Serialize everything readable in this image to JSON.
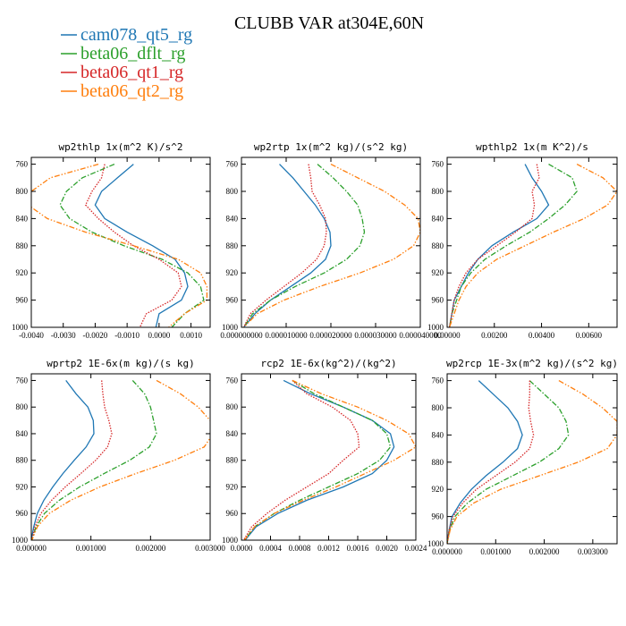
{
  "title": "CLUBB VAR at304E,60N",
  "legend": [
    {
      "name": "cam078_qt5_rg",
      "color": "#1f77b4",
      "dash": "solid"
    },
    {
      "name": "beta06_dflt_rg",
      "color": "#2ca02c",
      "dash": "dashdot"
    },
    {
      "name": "beta06_qt1_rg",
      "color": "#d62728",
      "dash": "dotted"
    },
    {
      "name": "beta06_qt2_rg",
      "color": "#ff7f0e",
      "dash": "dashdotdot"
    }
  ],
  "chart_data": [
    {
      "type": "line",
      "title": "wp2thlp  1x(m^2 K)/s^2",
      "xlim": [
        -0.004,
        0.0016
      ],
      "xticks": [
        -0.004,
        -0.003,
        -0.002,
        -0.001,
        0,
        0.001
      ],
      "xtick_labels": [
        "-0.0040",
        "-0.0030",
        "-0.0020",
        "-0.0010",
        "0.0000",
        "0.0010"
      ],
      "ylim": [
        1000,
        750
      ],
      "yticks": [
        760,
        800,
        840,
        880,
        920,
        960,
        1000
      ],
      "y": [
        760,
        780,
        800,
        820,
        840,
        860,
        880,
        900,
        920,
        940,
        960,
        980,
        1000
      ],
      "series": [
        {
          "name": "cam078_qt5_rg",
          "values": [
            -0.0008,
            -0.0013,
            -0.0018,
            -0.002,
            -0.0017,
            -0.001,
            -0.0002,
            0.0005,
            0.0008,
            0.0009,
            0.0007,
            0.0,
            -0.0001
          ]
        },
        {
          "name": "beta06_dflt_rg",
          "values": [
            -0.0014,
            -0.0024,
            -0.0029,
            -0.0031,
            -0.0028,
            -0.0021,
            -0.0011,
            0.0001,
            0.0009,
            0.0013,
            0.0014,
            0.0008,
            0.0004
          ]
        },
        {
          "name": "beta06_qt1_rg",
          "values": [
            -0.0017,
            -0.0018,
            -0.0021,
            -0.0023,
            -0.0019,
            -0.0014,
            -0.0008,
            0.0,
            0.0006,
            0.0007,
            0.0004,
            -0.0004,
            -0.0006
          ]
        },
        {
          "name": "beta06_qt2_rg",
          "values": [
            -0.0019,
            -0.0034,
            -0.004,
            -0.0041,
            -0.0035,
            -0.0023,
            -0.0008,
            0.0006,
            0.0013,
            0.0015,
            0.0015,
            0.0008,
            0.0003
          ]
        }
      ]
    },
    {
      "type": "line",
      "title": "wp2rtp  1x(m^2 kg)/(s^2 kg)",
      "xlim": [
        0,
        4e-05
      ],
      "xticks": [
        0,
        1e-05,
        2e-05,
        3e-05,
        4e-05
      ],
      "xtick_labels": [
        "0.000000000",
        "0.000010000",
        "0.000020000",
        "0.000030000",
        "0.000040000"
      ],
      "ylim": [
        1000,
        750
      ],
      "yticks": [
        760,
        800,
        840,
        880,
        920,
        960,
        1000
      ],
      "y": [
        760,
        780,
        800,
        820,
        840,
        860,
        880,
        900,
        920,
        940,
        960,
        980,
        1000
      ],
      "series": [
        {
          "name": "cam078_qt5_rg",
          "values": [
            8.5e-06,
            1.15e-05,
            1.4e-05,
            1.65e-05,
            1.85e-05,
            1.98e-05,
            2e-05,
            1.88e-05,
            1.55e-05,
            1.1e-05,
            6.5e-06,
            3e-06,
            5e-07
          ]
        },
        {
          "name": "beta06_dflt_rg",
          "values": [
            1.7e-05,
            2.05e-05,
            2.35e-05,
            2.6e-05,
            2.7e-05,
            2.75e-05,
            2.65e-05,
            2.35e-05,
            1.85e-05,
            1.2e-05,
            6.5e-06,
            2.5e-06,
            5e-07
          ]
        },
        {
          "name": "beta06_qt1_rg",
          "values": [
            1.5e-05,
            1.55e-05,
            1.58e-05,
            1.75e-05,
            1.88e-05,
            1.9e-05,
            1.85e-05,
            1.68e-05,
            1.35e-05,
            9.5e-06,
            5.5e-06,
            2e-06,
            5e-07
          ]
        },
        {
          "name": "beta06_qt2_rg",
          "values": [
            2e-05,
            2.6e-05,
            3.2e-05,
            3.65e-05,
            3.95e-05,
            4e-05,
            3.85e-05,
            3.4e-05,
            2.65e-05,
            1.75e-05,
            9.5e-06,
            3.5e-06,
            5e-07
          ]
        }
      ]
    },
    {
      "type": "line",
      "title": "wpthlp2  1x(m K^2)/s",
      "xlim": [
        0,
        0.0072
      ],
      "xticks": [
        0,
        0.002,
        0.004,
        0.006
      ],
      "xtick_labels": [
        "0.00000",
        "0.00200",
        "0.00400",
        "0.00600"
      ],
      "ylim": [
        1000,
        750
      ],
      "yticks": [
        760,
        800,
        840,
        880,
        920,
        960,
        1000
      ],
      "y": [
        760,
        780,
        800,
        820,
        840,
        860,
        880,
        900,
        920,
        940,
        960,
        980,
        1000
      ],
      "series": [
        {
          "name": "cam078_qt5_rg",
          "values": [
            0.0033,
            0.0036,
            0.004,
            0.0043,
            0.0038,
            0.0028,
            0.0019,
            0.0013,
            0.0009,
            0.0006,
            0.0003,
            0.0002,
            0.0001
          ]
        },
        {
          "name": "beta06_dflt_rg",
          "values": [
            0.0043,
            0.0053,
            0.0055,
            0.005,
            0.0043,
            0.0035,
            0.0025,
            0.0016,
            0.001,
            0.0006,
            0.0004,
            0.0002,
            0.0001
          ]
        },
        {
          "name": "beta06_qt1_rg",
          "values": [
            0.0038,
            0.0039,
            0.0036,
            0.0037,
            0.0036,
            0.0029,
            0.0021,
            0.0013,
            0.0008,
            0.0005,
            0.0003,
            0.0002,
            0.0001
          ]
        },
        {
          "name": "beta06_qt2_rg",
          "values": [
            0.0055,
            0.0066,
            0.0072,
            0.0068,
            0.0058,
            0.0045,
            0.0033,
            0.0021,
            0.0013,
            0.0008,
            0.0005,
            0.0003,
            0.0001
          ]
        }
      ]
    },
    {
      "type": "line",
      "title": "wprtp2  1E-6x(m kg)/(s kg)",
      "xlim": [
        0,
        0.003
      ],
      "xticks": [
        0,
        0.001,
        0.002,
        0.003
      ],
      "xtick_labels": [
        "0.000000",
        "0.001000",
        "0.002000",
        "0.003000"
      ],
      "ylim": [
        1000,
        750
      ],
      "yticks": [
        760,
        800,
        840,
        880,
        920,
        960,
        1000
      ],
      "y": [
        760,
        780,
        800,
        820,
        840,
        860,
        880,
        900,
        920,
        940,
        960,
        980,
        1000
      ],
      "series": [
        {
          "name": "cam078_qt5_rg",
          "values": [
            0.00058,
            0.00075,
            0.00095,
            0.00104,
            0.00105,
            0.00092,
            0.00072,
            0.00053,
            0.00036,
            0.00021,
            0.0001,
            4e-05,
            0.0
          ]
        },
        {
          "name": "beta06_dflt_rg",
          "values": [
            0.0017,
            0.0019,
            0.002,
            0.00205,
            0.0021,
            0.00198,
            0.00165,
            0.00122,
            0.00081,
            0.00047,
            0.00022,
            8e-05,
            1e-05
          ]
        },
        {
          "name": "beta06_qt1_rg",
          "values": [
            0.00118,
            0.0012,
            0.00123,
            0.0013,
            0.00135,
            0.00128,
            0.00108,
            0.00083,
            0.00057,
            0.00034,
            0.00016,
            6e-05,
            1e-05
          ]
        },
        {
          "name": "beta06_qt2_rg",
          "values": [
            0.0021,
            0.0025,
            0.0028,
            0.003,
            0.00305,
            0.0029,
            0.0024,
            0.00175,
            0.00115,
            0.00066,
            0.0003,
            0.0001,
            1e-05
          ]
        }
      ]
    },
    {
      "type": "line",
      "title": "rcp2  1E-6x(kg^2)/(kg^2)",
      "xlim": [
        0,
        0.0024
      ],
      "xticks": [
        0,
        0.0004,
        0.0008,
        0.0012,
        0.0016,
        0.002,
        0.0024
      ],
      "xtick_labels": [
        "0.0000",
        "0.0004",
        "0.0008",
        "0.0012",
        "0.0016",
        "0.0020",
        "0.0024"
      ],
      "ylim": [
        1000,
        750
      ],
      "yticks": [
        760,
        800,
        840,
        880,
        920,
        960,
        1000
      ],
      "y": [
        760,
        780,
        800,
        820,
        840,
        860,
        880,
        900,
        920,
        940,
        960,
        980,
        1000
      ],
      "series": [
        {
          "name": "cam078_qt5_rg",
          "values": [
            0.00058,
            0.00095,
            0.0014,
            0.0018,
            0.00205,
            0.0021,
            0.002,
            0.0018,
            0.0014,
            0.0009,
            0.0005,
            0.0002,
            5e-05
          ]
        },
        {
          "name": "beta06_dflt_rg",
          "values": [
            0.0007,
            0.001,
            0.0014,
            0.0018,
            0.002,
            0.00205,
            0.0019,
            0.0016,
            0.0012,
            0.0008,
            0.00045,
            0.00018,
            4e-05
          ]
        },
        {
          "name": "beta06_qt1_rg",
          "values": [
            0.0007,
            0.0009,
            0.00125,
            0.0015,
            0.0016,
            0.00162,
            0.0014,
            0.0012,
            0.0009,
            0.0006,
            0.00035,
            0.00014,
            3e-05
          ]
        },
        {
          "name": "beta06_qt2_rg",
          "values": [
            0.0007,
            0.0011,
            0.0016,
            0.002,
            0.0023,
            0.0024,
            0.0021,
            0.0017,
            0.0013,
            0.00085,
            0.00045,
            0.00018,
            4e-05
          ]
        }
      ]
    },
    {
      "type": "line",
      "title": "wp2rcp  1E-3x(m^2 kg)/(s^2 kg)",
      "xlim": [
        0,
        0.0035
      ],
      "xticks": [
        0,
        0.001,
        0.002,
        0.003
      ],
      "xtick_labels": [
        "0.000000",
        "0.001000",
        "0.002000",
        "0.003000"
      ],
      "ylim": [
        1000,
        750
      ],
      "yticks": [
        760,
        800,
        840,
        880,
        920,
        960,
        1000
      ],
      "y": [
        760,
        780,
        800,
        820,
        840,
        860,
        880,
        900,
        920,
        940,
        960,
        980,
        1000
      ],
      "series": [
        {
          "name": "cam078_qt5_rg",
          "values": [
            0.00065,
            0.00095,
            0.00125,
            0.00145,
            0.00155,
            0.00145,
            0.00115,
            0.0008,
            0.0005,
            0.00027,
            0.0001,
            4e-05,
            0.0
          ]
        },
        {
          "name": "beta06_dflt_rg",
          "values": [
            0.0017,
            0.002,
            0.0023,
            0.00245,
            0.0025,
            0.0023,
            0.0019,
            0.00135,
            0.0008,
            0.00042,
            0.00016,
            5e-05,
            0.0
          ]
        },
        {
          "name": "beta06_qt1_rg",
          "values": [
            0.0017,
            0.0017,
            0.00168,
            0.00172,
            0.00178,
            0.0017,
            0.0014,
            0.001,
            0.0006,
            0.00032,
            0.00012,
            4e-05,
            0.0
          ]
        },
        {
          "name": "beta06_qt2_rg",
          "values": [
            0.0023,
            0.0028,
            0.0032,
            0.0035,
            0.0035,
            0.0033,
            0.0027,
            0.0019,
            0.0011,
            0.00055,
            0.0002,
            6e-05,
            0.0
          ]
        }
      ]
    }
  ]
}
